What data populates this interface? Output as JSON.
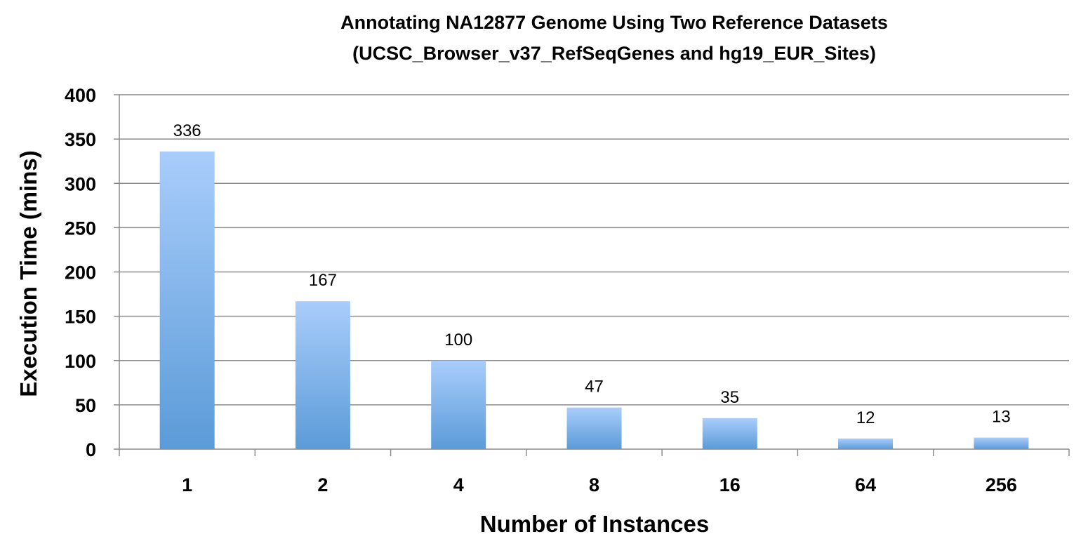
{
  "chart_data": {
    "type": "bar",
    "title": "Annotating NA12877 Genome Using Two Reference Datasets",
    "subtitle": "(UCSC_Browser_v37_RefSeqGenes and hg19_EUR_Sites)",
    "xlabel": "Number of Instances",
    "ylabel": "Execution Time (mins)",
    "categories": [
      "1",
      "2",
      "4",
      "8",
      "16",
      "64",
      "256"
    ],
    "values": [
      336,
      167,
      100,
      47,
      35,
      12,
      13
    ],
    "data_labels": [
      "336",
      "167",
      "100",
      "47",
      "35",
      "12",
      "13"
    ],
    "ylim": [
      0,
      400
    ],
    "yticks": [
      0,
      50,
      100,
      150,
      200,
      250,
      300,
      350,
      400
    ],
    "ytick_labels": [
      "0",
      "50",
      "100",
      "150",
      "200",
      "250",
      "300",
      "350",
      "400"
    ],
    "grid": true,
    "legend": "none",
    "bar_color_top": "#a9cdfb",
    "bar_color_bottom": "#5b9bd8"
  }
}
